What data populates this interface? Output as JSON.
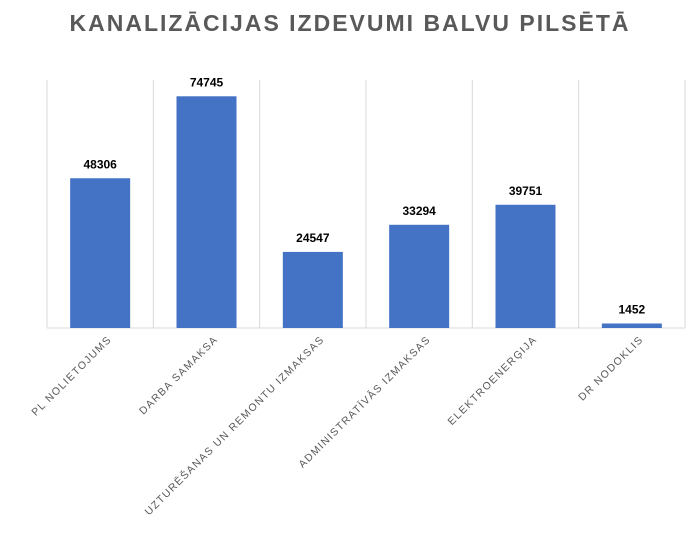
{
  "chart_data": {
    "type": "bar",
    "title": "KANALIZĀCIJAS IZDEVUMI BALVU PILSĒTĀ",
    "categories": [
      "PL NOLIETOJUMS",
      "DARBA SAMAKSA",
      "UZTURĒŠANAS UN REMONTU IZMAKSAS",
      "ADMINISTRATĪVĀS IZMAKSAS",
      "ELEKTROENERĢIJA",
      "DR NODOKLIS"
    ],
    "values": [
      48306,
      74745,
      24547,
      33294,
      39751,
      1452
    ],
    "ylim": [
      0,
      80000
    ],
    "bar_color": "#4472C4",
    "gridlines": "vertical category separators",
    "legend": "none"
  }
}
